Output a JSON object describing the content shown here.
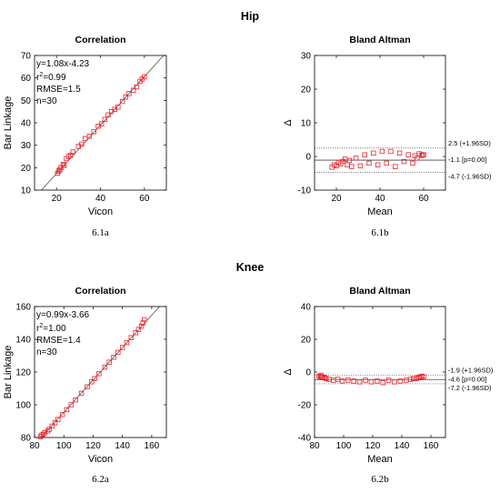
{
  "sections": [
    {
      "title": "Hip"
    },
    {
      "title": "Knee"
    }
  ],
  "chart_data": [
    {
      "type": "scatter",
      "title": "Correlation",
      "xlabel": "Vicon",
      "ylabel": "Bar Linkage",
      "xlim": [
        10,
        70
      ],
      "ylim": [
        10,
        70
      ],
      "xticks": [
        20,
        40,
        60
      ],
      "yticks": [
        10,
        20,
        30,
        40,
        50,
        60,
        70
      ],
      "grid": false,
      "caption": "6.1a",
      "stats": [
        "y=1.08x-4.23",
        "r",
        "2",
        "=0.99",
        "RMSE=1.5",
        "n=30"
      ],
      "fit": {
        "slope": 1.08,
        "intercept": -4.23
      },
      "marker_color": "#e8222a",
      "x": [
        20.5,
        21,
        21.5,
        22,
        23,
        23.5,
        24.5,
        25.5,
        26.5,
        27.5,
        30,
        31.5,
        33,
        35,
        37,
        39,
        40.5,
        42,
        43.5,
        45,
        46.5,
        48,
        50,
        51.5,
        53,
        55,
        56.5,
        58,
        59,
        60
      ],
      "y": [
        17.5,
        18.5,
        19,
        20,
        21.5,
        21,
        24,
        25,
        25.5,
        27,
        29.5,
        30.5,
        33,
        34,
        36,
        38.5,
        39.5,
        41.5,
        43.5,
        45,
        46,
        47,
        49.5,
        51.5,
        53,
        54.5,
        56,
        58.5,
        59.5,
        60.5
      ]
    },
    {
      "type": "scatter",
      "title": "Bland Altman",
      "xlabel": "Mean",
      "ylabel": "Δ",
      "xlim": [
        10,
        70
      ],
      "ylim": [
        -10,
        30
      ],
      "xticks": [
        20,
        40,
        60
      ],
      "yticks": [
        -10,
        0,
        10,
        20,
        30
      ],
      "grid": false,
      "caption": "6.1b",
      "lines": [
        {
          "value": 2.5,
          "label": "2.5 (+1.96SD)",
          "style": "dotted"
        },
        {
          "value": -1.1,
          "label": "-1.1 [p=0.00]",
          "style": "solid"
        },
        {
          "value": -4.7,
          "label": "-4.7 (-1.96SD)",
          "style": "dotted"
        }
      ],
      "marker_color": "#e8222a",
      "x": [
        18,
        19,
        20,
        21,
        22,
        23,
        24,
        25,
        26,
        27,
        29,
        31,
        33,
        35,
        37,
        39,
        41,
        43,
        45,
        47,
        49,
        51,
        53,
        55,
        56,
        57,
        58,
        59,
        59.5,
        60
      ],
      "y": [
        -3.2,
        -2.5,
        -2.8,
        -1.8,
        -2.2,
        -1.5,
        -0.8,
        -2.5,
        -1.2,
        -3.0,
        -0.5,
        -2.8,
        0.5,
        -2.0,
        1.0,
        -2.5,
        1.5,
        -2.0,
        1.5,
        -3.0,
        1.0,
        -1.5,
        0.5,
        -2.0,
        0.2,
        -0.5,
        0.8,
        0.3,
        0.5,
        0.5
      ]
    },
    {
      "type": "scatter",
      "title": "Correlation",
      "xlabel": "Vicon",
      "ylabel": "Bar Linkage",
      "xlim": [
        80,
        170
      ],
      "ylim": [
        80,
        160
      ],
      "xticks": [
        80,
        100,
        120,
        140,
        160
      ],
      "yticks": [
        80,
        100,
        120,
        140,
        160
      ],
      "grid": false,
      "caption": "6.2a",
      "stats": [
        "y=0.99x-3.66",
        "r",
        "2",
        "=1.00",
        "RMSE=1.4",
        "n=30"
      ],
      "fit": {
        "slope": 0.99,
        "intercept": -3.66
      },
      "marker_color": "#e8222a",
      "x": [
        84,
        85,
        86,
        87,
        89,
        90,
        92,
        94,
        96,
        99,
        102,
        105,
        108,
        112,
        116,
        119,
        121,
        124,
        128,
        131,
        134,
        137,
        140,
        143,
        146,
        149,
        151,
        153,
        154,
        155
      ],
      "y": [
        80.5,
        81.5,
        82,
        83,
        84,
        85,
        87,
        89,
        91,
        94,
        97,
        100,
        103,
        107,
        111,
        114,
        116,
        119,
        123,
        126,
        129,
        132,
        135,
        138,
        141,
        144,
        146,
        148,
        150,
        152
      ]
    },
    {
      "type": "scatter",
      "title": "Bland Altman",
      "xlabel": "Mean",
      "ylabel": "Δ",
      "xlim": [
        80,
        170
      ],
      "ylim": [
        -40,
        40
      ],
      "xticks": [
        80,
        100,
        120,
        140,
        160
      ],
      "yticks": [
        -40,
        -20,
        0,
        20,
        40
      ],
      "grid": false,
      "caption": "6.2b",
      "lines": [
        {
          "value": -1.9,
          "label": "-1.9 (+1.96SD)",
          "style": "dotted"
        },
        {
          "value": -4.6,
          "label": "-4.6 [p=0.00]",
          "style": "solid"
        },
        {
          "value": -7.2,
          "label": "-7.2 (-1.96SD)",
          "style": "dotted"
        }
      ],
      "marker_color": "#e8222a",
      "x": [
        83,
        84,
        85,
        86,
        88,
        90,
        93,
        96,
        99,
        103,
        107,
        111,
        115,
        119,
        123,
        127,
        131,
        135,
        139,
        143,
        146,
        148,
        150,
        151,
        152,
        153,
        154,
        155,
        84.5,
        87
      ],
      "y": [
        -2.5,
        -3.0,
        -3.5,
        -3.0,
        -4.0,
        -4.5,
        -5.0,
        -4.5,
        -5.5,
        -5.0,
        -5.5,
        -6.0,
        -5.0,
        -6.0,
        -5.5,
        -6.5,
        -5.0,
        -6.0,
        -5.5,
        -5.0,
        -4.5,
        -4.0,
        -4.0,
        -3.5,
        -3.0,
        -3.5,
        -2.5,
        -3.0,
        -2.0,
        -3.5
      ]
    }
  ]
}
